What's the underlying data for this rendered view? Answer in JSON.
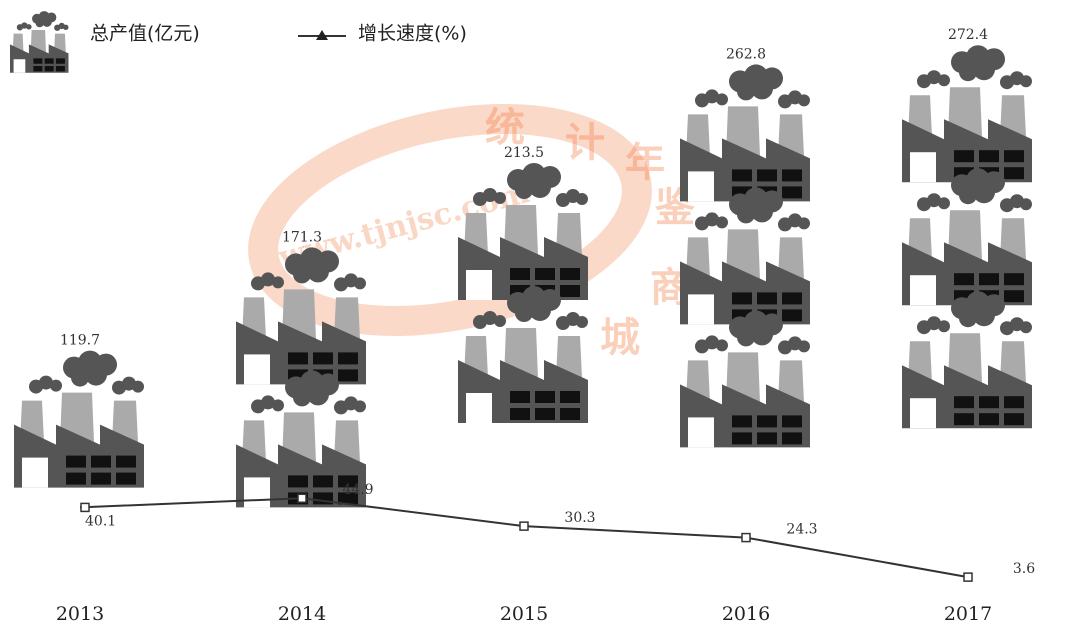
{
  "chart_data": {
    "type": "pictograph",
    "categories": [
      "2013",
      "2014",
      "2015",
      "2016",
      "2017"
    ],
    "series": [
      {
        "name": "总产值(亿元)",
        "color": "#555555",
        "values": [
          119.7,
          171.3,
          213.5,
          262.8,
          272.4
        ]
      },
      {
        "name": "增长速度(%)",
        "color": "#333333",
        "values": [
          40.1,
          44.9,
          30.3,
          24.3,
          3.6
        ]
      }
    ],
    "watermark": [
      "统",
      "计",
      "年",
      "鉴",
      "商",
      "城",
      "www.tjnjsc.com"
    ]
  }
}
